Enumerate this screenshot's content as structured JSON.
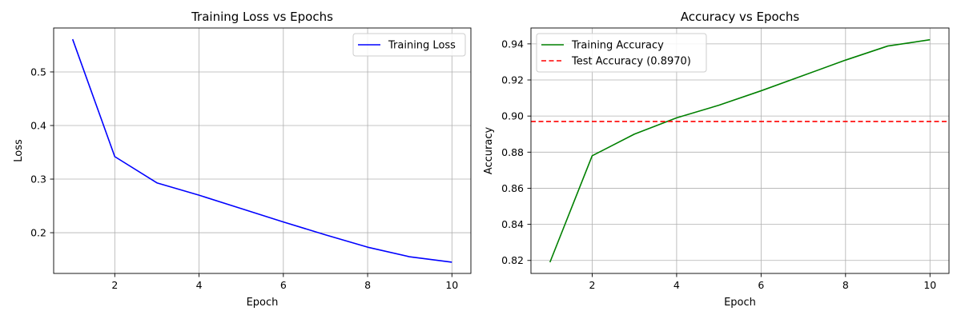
{
  "chart_data": [
    {
      "type": "line",
      "title": "Training Loss vs Epochs",
      "xlabel": "Epoch",
      "ylabel": "Loss",
      "xlim": [
        0.55,
        10.45
      ],
      "ylim": [
        0.124,
        0.582
      ],
      "xticks": [
        2,
        4,
        6,
        8,
        10
      ],
      "yticks": [
        0.2,
        0.3,
        0.4,
        0.5
      ],
      "x_tick_labels": [
        "2",
        "4",
        "6",
        "8",
        "10"
      ],
      "y_tick_labels": [
        "0.2",
        "0.3",
        "0.4",
        "0.5"
      ],
      "grid": true,
      "legend_position": "upper right",
      "x": [
        1,
        2,
        3,
        4,
        5,
        6,
        7,
        8,
        9,
        10
      ],
      "series": [
        {
          "name": "Training Loss",
          "color": "#0000ff",
          "style": "solid",
          "values": [
            0.561,
            0.342,
            0.293,
            0.27,
            0.245,
            0.22,
            0.196,
            0.173,
            0.155,
            0.145
          ]
        }
      ]
    },
    {
      "type": "line",
      "title": "Accuracy vs Epochs",
      "xlabel": "Epoch",
      "ylabel": "Accuracy",
      "xlim": [
        0.55,
        10.45
      ],
      "ylim": [
        0.8128,
        0.9488
      ],
      "xticks": [
        2,
        4,
        6,
        8,
        10
      ],
      "yticks": [
        0.82,
        0.84,
        0.86,
        0.88,
        0.9,
        0.92,
        0.94
      ],
      "x_tick_labels": [
        "2",
        "4",
        "6",
        "8",
        "10"
      ],
      "y_tick_labels": [
        "0.82",
        "0.84",
        "0.86",
        "0.88",
        "0.90",
        "0.92",
        "0.94"
      ],
      "grid": true,
      "legend_position": "upper left",
      "x": [
        1,
        2,
        3,
        4,
        5,
        6,
        7,
        8,
        9,
        10
      ],
      "series": [
        {
          "name": "Training Accuracy",
          "color": "#008000",
          "style": "solid",
          "values": [
            0.819,
            0.878,
            0.89,
            0.899,
            0.906,
            0.914,
            0.9225,
            0.931,
            0.9388,
            0.9423
          ]
        },
        {
          "name": "Test Accuracy (0.8970)",
          "color": "#ff0000",
          "style": "dashed",
          "hline": 0.897
        }
      ]
    }
  ]
}
